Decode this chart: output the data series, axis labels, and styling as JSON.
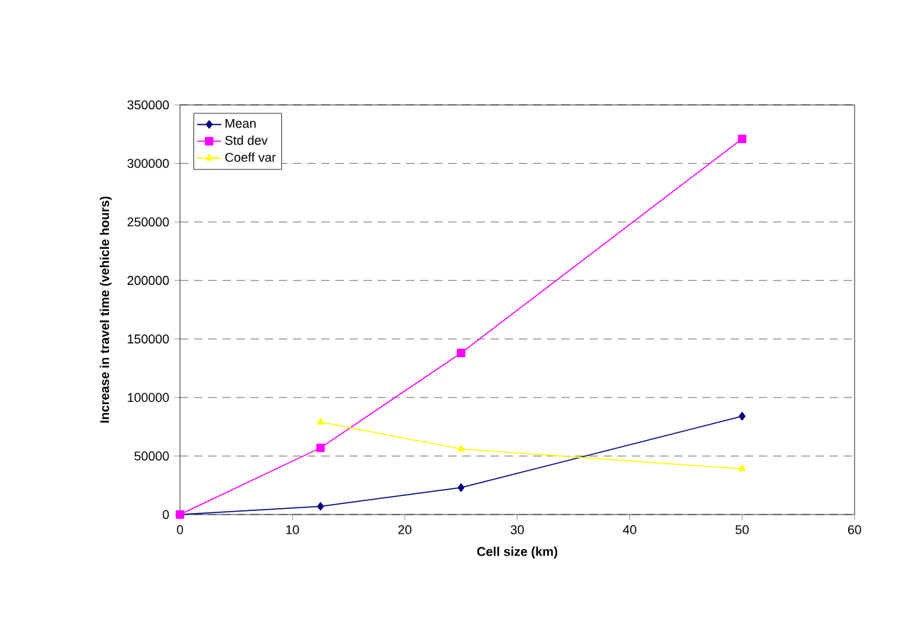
{
  "chart_data": {
    "type": "line",
    "xlabel": "Cell size (km)",
    "ylabel": "Increase in travel time (vehicle hours)",
    "x": [
      0,
      12.5,
      25,
      50
    ],
    "series": [
      {
        "name": "Mean",
        "color": "#000080",
        "marker": "diamond",
        "values": [
          0,
          7000,
          23000,
          84000
        ]
      },
      {
        "name": "Std dev",
        "color": "#ff00ff",
        "marker": "square",
        "values": [
          0,
          57000,
          138000,
          321000
        ]
      },
      {
        "name": "Coeff var",
        "color": "#ffff00",
        "marker": "triangle",
        "values": [
          null,
          79000,
          56000,
          39000
        ]
      }
    ],
    "xlim": [
      0,
      60
    ],
    "xticks": [
      0,
      10,
      20,
      30,
      40,
      50,
      60
    ],
    "ylim": [
      0,
      350000
    ],
    "yticks": [
      0,
      50000,
      100000,
      150000,
      200000,
      250000,
      300000,
      350000
    ],
    "grid": "y",
    "legend": "top left",
    "line_style": "solid"
  }
}
